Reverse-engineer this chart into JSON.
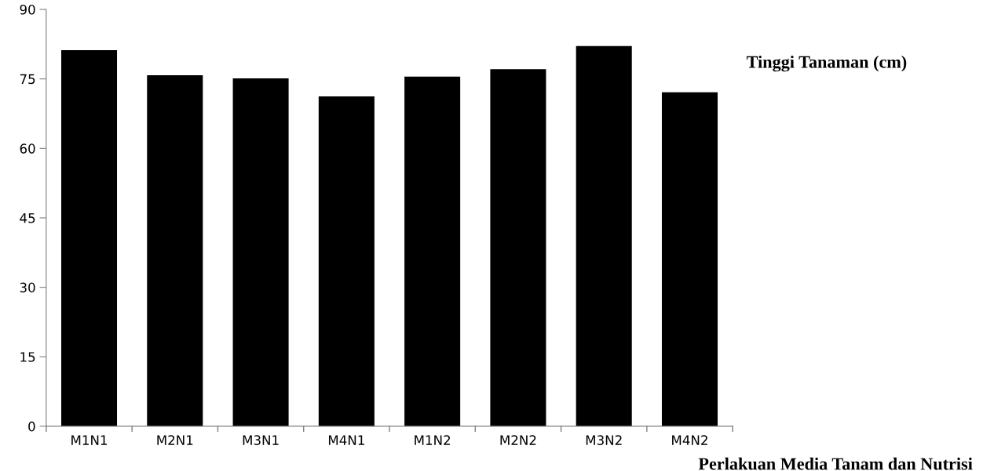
{
  "chart_data": {
    "type": "bar",
    "categories": [
      "M1N1",
      "M2N1",
      "M3N1",
      "M4N1",
      "M1N2",
      "M2N2",
      "M3N2",
      "M4N2"
    ],
    "values": [
      81.2,
      75.8,
      75.1,
      71.2,
      75.5,
      77.1,
      82.1,
      72.1
    ],
    "color": "#000000",
    "xlabel": "Perlakuan Media Tanam dan Nutrisi",
    "ylabel": "Tinggi Tanaman (cm)",
    "ylim": [
      0,
      90
    ],
    "yticks": [
      0,
      15,
      30,
      45,
      60,
      75,
      90
    ],
    "grid": false,
    "legend": false
  }
}
